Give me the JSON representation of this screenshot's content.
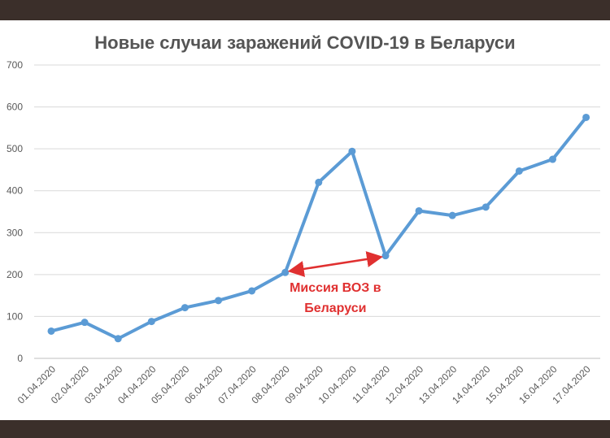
{
  "chart_data": {
    "type": "line",
    "title": "Новые случаи заражений COVID-19 в Беларуси",
    "xlabel": "",
    "ylabel": "",
    "ylim": [
      0,
      700
    ],
    "yticks": [
      0,
      100,
      200,
      300,
      400,
      500,
      600,
      700
    ],
    "grid": true,
    "categories": [
      "01.04.2020",
      "02.04.2020",
      "03.04.2020",
      "04.04.2020",
      "05.04.2020",
      "06.04.2020",
      "07.04.2020",
      "08.04.2020",
      "09.04.2020",
      "10.04.2020",
      "11.04.2020",
      "12.04.2020",
      "13.04.2020",
      "14.04.2020",
      "15.04.2020",
      "16.04.2020",
      "17.04.2020"
    ],
    "series": [
      {
        "values": [
          65,
          86,
          47,
          88,
          121,
          138,
          161,
          205,
          420,
          494,
          245,
          352,
          341,
          361,
          447,
          475,
          575
        ],
        "color": "#5b9bd5"
      }
    ],
    "annotation": {
      "lines": [
        "Миссия ВОЗ в",
        "Беларуси"
      ],
      "arrow_from": "08.04.2020",
      "arrow_to": "11.04.2020",
      "color": "#e03030"
    }
  }
}
